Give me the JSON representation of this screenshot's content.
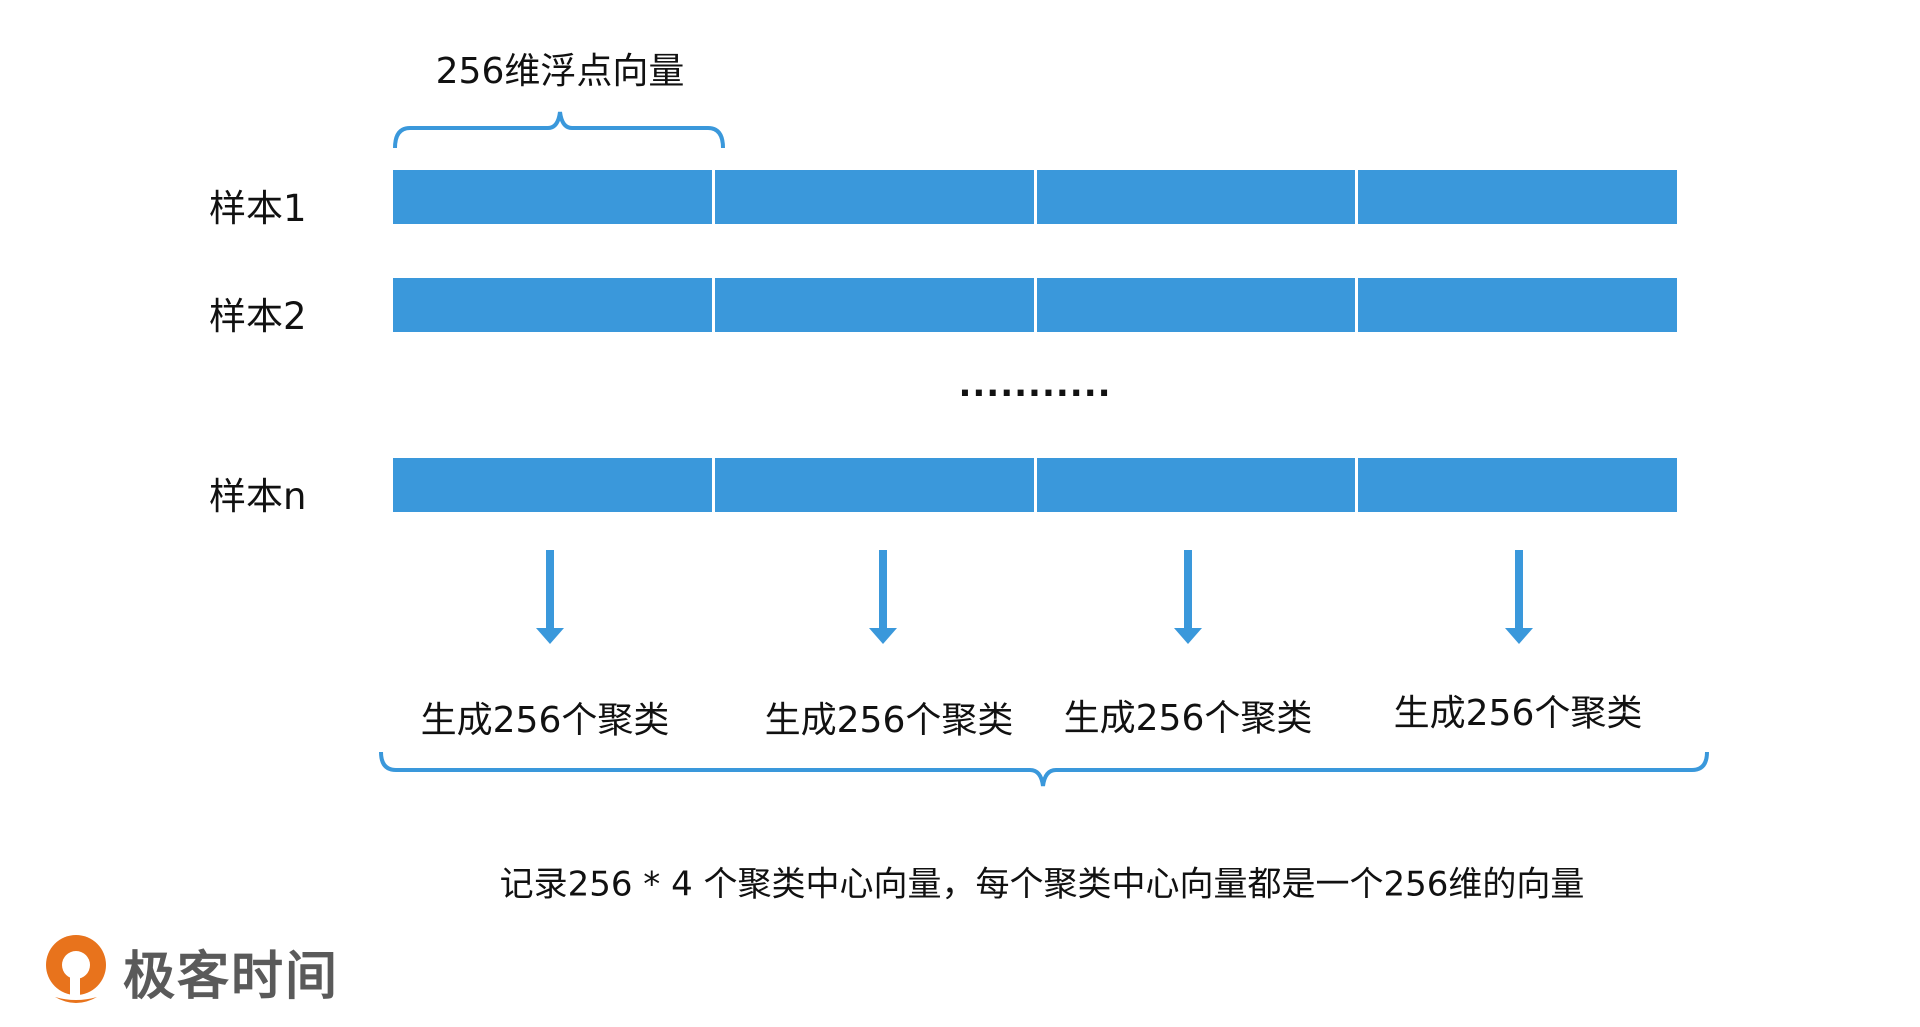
{
  "top_label": "256维浮点向量",
  "rows": [
    {
      "label": "样本1"
    },
    {
      "label": "样本2"
    },
    {
      "label": "样本n"
    }
  ],
  "ellipsis": "...........",
  "segments_per_row": 4,
  "cluster_labels": [
    "生成256个聚类",
    "生成256个聚类",
    "生成256个聚类",
    "生成256个聚类"
  ],
  "bottom_text": "记录256 * 4 个聚类中心向量，每个聚类中心向量都是一个256维的向量",
  "logo": {
    "text": "极客时间"
  },
  "colors": {
    "accent": "#3a98db",
    "logo_orange": "#e8731c",
    "logo_text": "#5a5a5a"
  }
}
